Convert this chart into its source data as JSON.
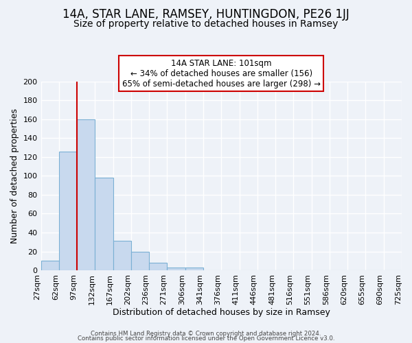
{
  "title": "14A, STAR LANE, RAMSEY, HUNTINGDON, PE26 1JJ",
  "subtitle": "Size of property relative to detached houses in Ramsey",
  "xlabel": "Distribution of detached houses by size in Ramsey",
  "ylabel": "Number of detached properties",
  "bin_labels": [
    "27sqm",
    "62sqm",
    "97sqm",
    "132sqm",
    "167sqm",
    "202sqm",
    "236sqm",
    "271sqm",
    "306sqm",
    "341sqm",
    "376sqm",
    "411sqm",
    "446sqm",
    "481sqm",
    "516sqm",
    "551sqm",
    "586sqm",
    "620sqm",
    "655sqm",
    "690sqm",
    "725sqm"
  ],
  "bar_heights": [
    10,
    126,
    160,
    98,
    31,
    20,
    8,
    3,
    3,
    0,
    0,
    0,
    0,
    0,
    0,
    0,
    0,
    0,
    0,
    0
  ],
  "bar_color": "#c8d9ee",
  "bar_edge_color": "#7ab0d4",
  "vline_x_index": 2,
  "vline_color": "#cc0000",
  "annotation_line1": "14A STAR LANE: 101sqm",
  "annotation_line2": "← 34% of detached houses are smaller (156)",
  "annotation_line3": "65% of semi-detached houses are larger (298) →",
  "annotation_box_color": "#cc0000",
  "ylim": [
    0,
    200
  ],
  "yticks": [
    0,
    20,
    40,
    60,
    80,
    100,
    120,
    140,
    160,
    180,
    200
  ],
  "footer_line1": "Contains HM Land Registry data © Crown copyright and database right 2024.",
  "footer_line2": "Contains public sector information licensed under the Open Government Licence v3.0.",
  "bg_color": "#eef2f8",
  "plot_bg_color": "#eef2f8",
  "grid_color": "#ffffff",
  "title_fontsize": 12,
  "subtitle_fontsize": 10,
  "tick_fontsize": 8,
  "ylabel_fontsize": 9,
  "xlabel_fontsize": 9
}
